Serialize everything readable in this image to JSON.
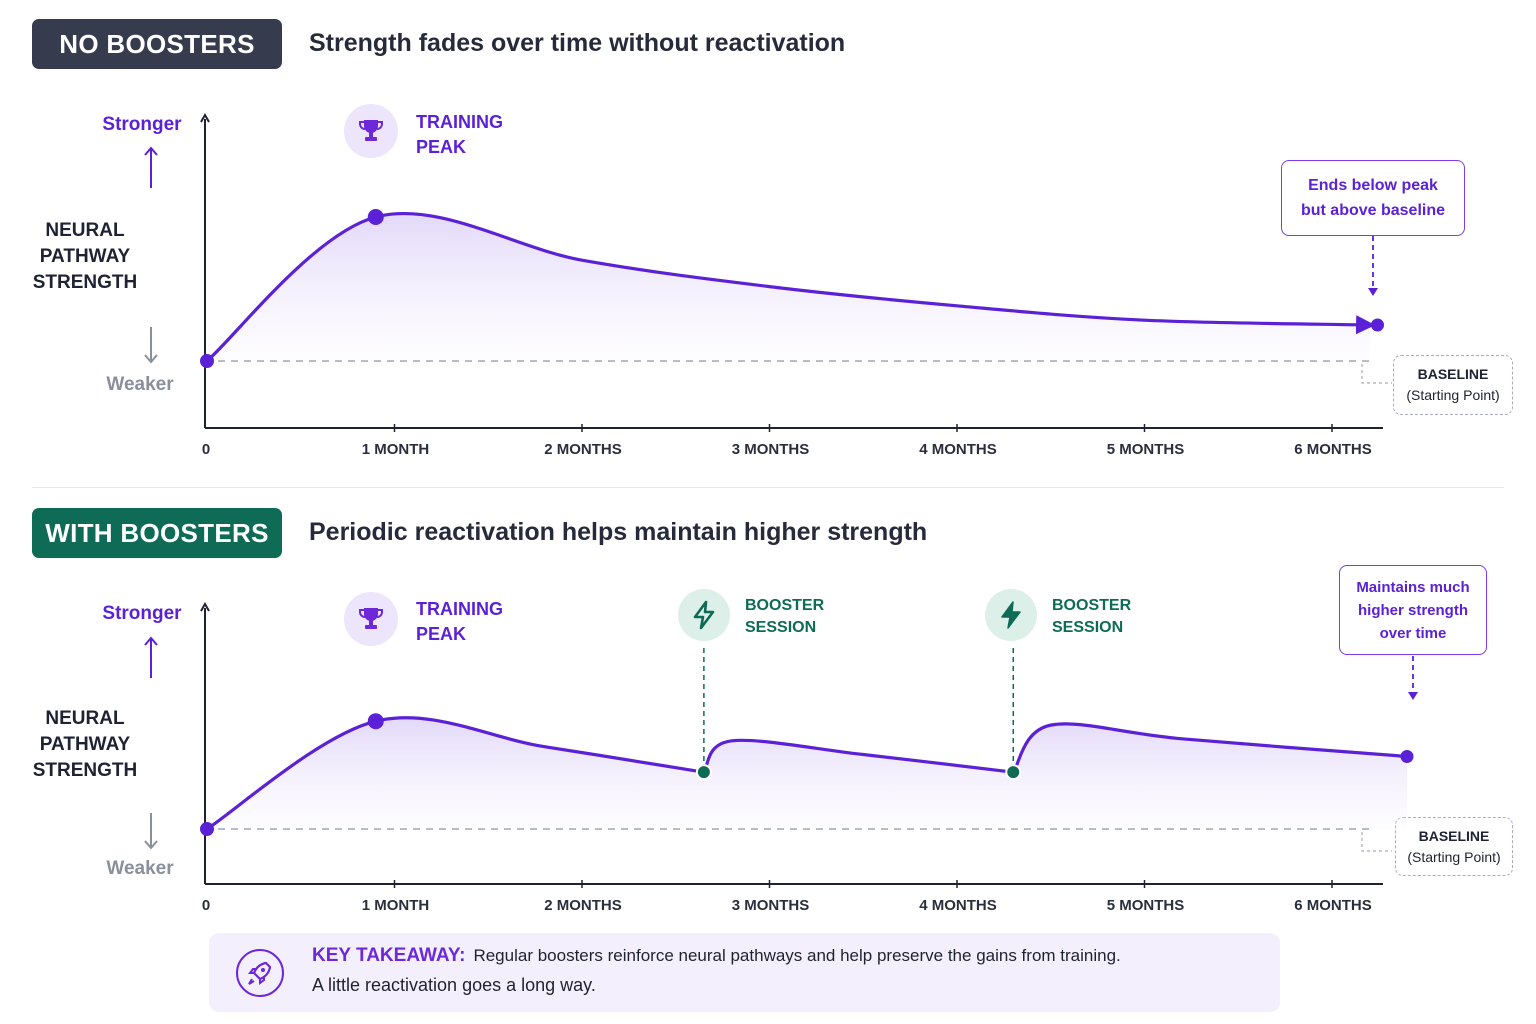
{
  "panels": {
    "top": {
      "badge": "NO BOOSTERS",
      "heading": "Strength fades over time without reactivation",
      "y_top": "Stronger",
      "y_bottom": "Weaker",
      "y_title": [
        "NEURAL",
        "PATHWAY",
        "STRENGTH"
      ],
      "peak_label": [
        "TRAINING",
        "PEAK"
      ],
      "callout": [
        "Ends below peak",
        "but above baseline"
      ],
      "baseline": [
        "BASELINE",
        "(Starting Point)"
      ]
    },
    "bottom": {
      "badge": "WITH BOOSTERS",
      "heading": "Periodic reactivation helps maintain higher strength",
      "y_top": "Stronger",
      "y_bottom": "Weaker",
      "y_title": [
        "NEURAL",
        "PATHWAY",
        "STRENGTH"
      ],
      "peak_label": [
        "TRAINING",
        "PEAK"
      ],
      "booster_label": [
        "BOOSTER",
        "SESSION"
      ],
      "callout": [
        "Maintains much",
        "higher strength",
        "over time"
      ],
      "baseline": [
        "BASELINE",
        "(Starting Point)"
      ]
    }
  },
  "takeaway": {
    "key": "KEY TAKEAWAY:",
    "line1": "Regular boosters reinforce neural pathways and help preserve the gains from training.",
    "line2": "A little reactivation goes a long way."
  },
  "colors": {
    "purple": "#5b21d6",
    "line": "#5b21d6",
    "green": "#0e6b55",
    "dark_badge": "#363c4e"
  },
  "icons": [
    "trophy-icon",
    "lightning-icon",
    "rocket-icon"
  ],
  "chart_data": [
    {
      "type": "line",
      "xlabel": "",
      "ylabel": "NEURAL PATHWAY STRENGTH",
      "x_ticks": [
        "0",
        "1 MONTH",
        "2 MONTHS",
        "3 MONTHS",
        "4 MONTHS",
        "5 MONTHS",
        "6 MONTHS"
      ],
      "xlim": [
        0,
        6.3
      ],
      "ylim": [
        0,
        1
      ],
      "baseline": 0.0,
      "points": [
        [
          0,
          0
        ],
        [
          0.9,
          0.6
        ],
        [
          2,
          0.42
        ],
        [
          3,
          0.31
        ],
        [
          4,
          0.23
        ],
        [
          5,
          0.17
        ],
        [
          6.2,
          0.15
        ]
      ]
    },
    {
      "type": "line",
      "xlabel": "",
      "ylabel": "NEURAL PATHWAY STRENGTH",
      "x_ticks": [
        "0",
        "1 MONTH",
        "2 MONTHS",
        "3 MONTHS",
        "4 MONTHS",
        "5 MONTHS",
        "6 MONTHS"
      ],
      "xlim": [
        0,
        6.3
      ],
      "ylim": [
        0,
        1
      ],
      "baseline": 0.0,
      "boosters_at": [
        2.65,
        4.3
      ],
      "points": [
        [
          0,
          0
        ],
        [
          0.9,
          0.55
        ],
        [
          1.8,
          0.42
        ],
        [
          2.65,
          0.29
        ],
        [
          2.8,
          0.45
        ],
        [
          3.5,
          0.38
        ],
        [
          4.3,
          0.29
        ],
        [
          4.5,
          0.53
        ],
        [
          5.2,
          0.46
        ],
        [
          6.4,
          0.37
        ]
      ]
    }
  ]
}
